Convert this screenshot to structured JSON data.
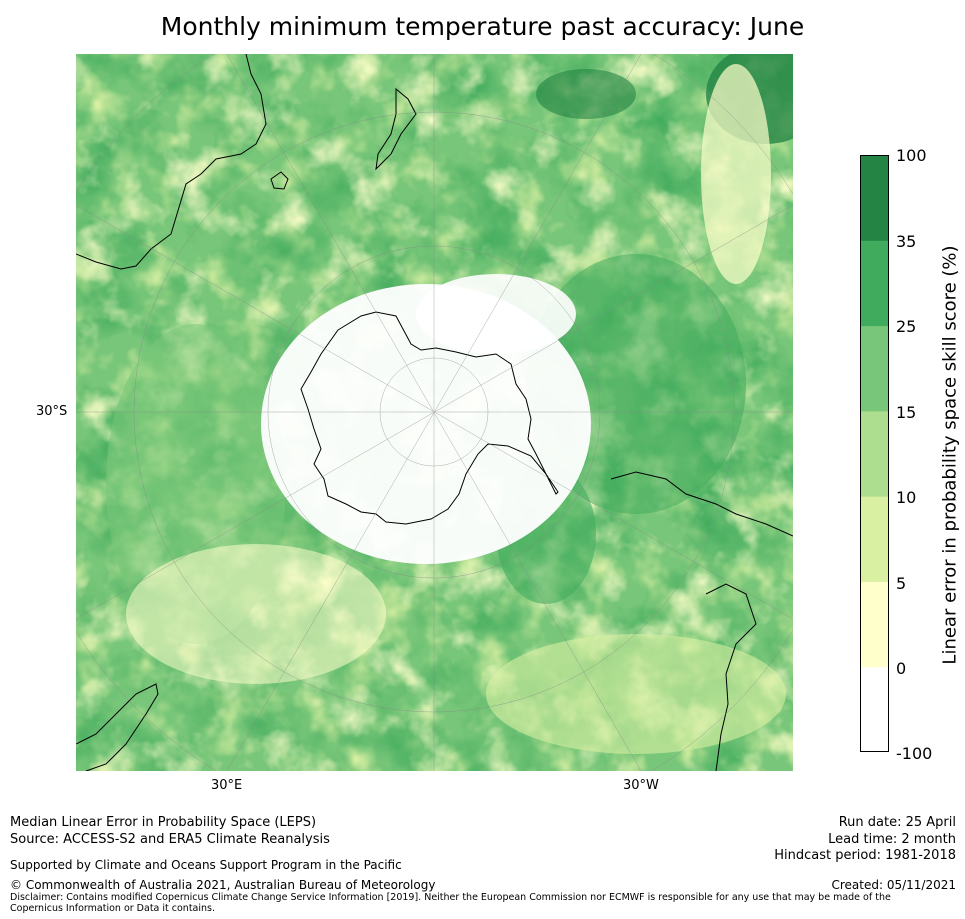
{
  "title": "Monthly minimum temperature past accuracy: June",
  "map": {
    "lat_label": "30°S",
    "lon_labels": [
      "30°E",
      "30°W"
    ]
  },
  "colorbar": {
    "label": "Linear error in probability space skill score (%)",
    "ticks": [
      "100",
      "35",
      "25",
      "15",
      "10",
      "5",
      "0",
      "-100"
    ],
    "colors": [
      "#ffffff",
      "#ffffcc",
      "#d9f0a3",
      "#addd8e",
      "#78c679",
      "#41ab5d",
      "#238443"
    ]
  },
  "footer": {
    "left_line1": "Median Linear Error in Probability Space (LEPS)",
    "left_line2": "Source: ACCESS-S2 and ERA5 Climate Reanalysis",
    "support": "Supported by Climate and Oceans Support Program in the Pacific",
    "copyright": "© Commonwealth of Australia 2021, Australian Bureau of Meteorology",
    "disclaimer": "Disclaimer: Contains modified Copernicus Climate Change Service Information [2019]. Neither the European Commission nor ECMWF is responsible for any use that may be made of the Copernicus Information or Data it contains.",
    "run_date": "Run date: 25 April",
    "lead_time": "Lead time: 2 month",
    "hindcast": "Hindcast period: 1981-2018",
    "created": "Created: 05/11/2021"
  }
}
